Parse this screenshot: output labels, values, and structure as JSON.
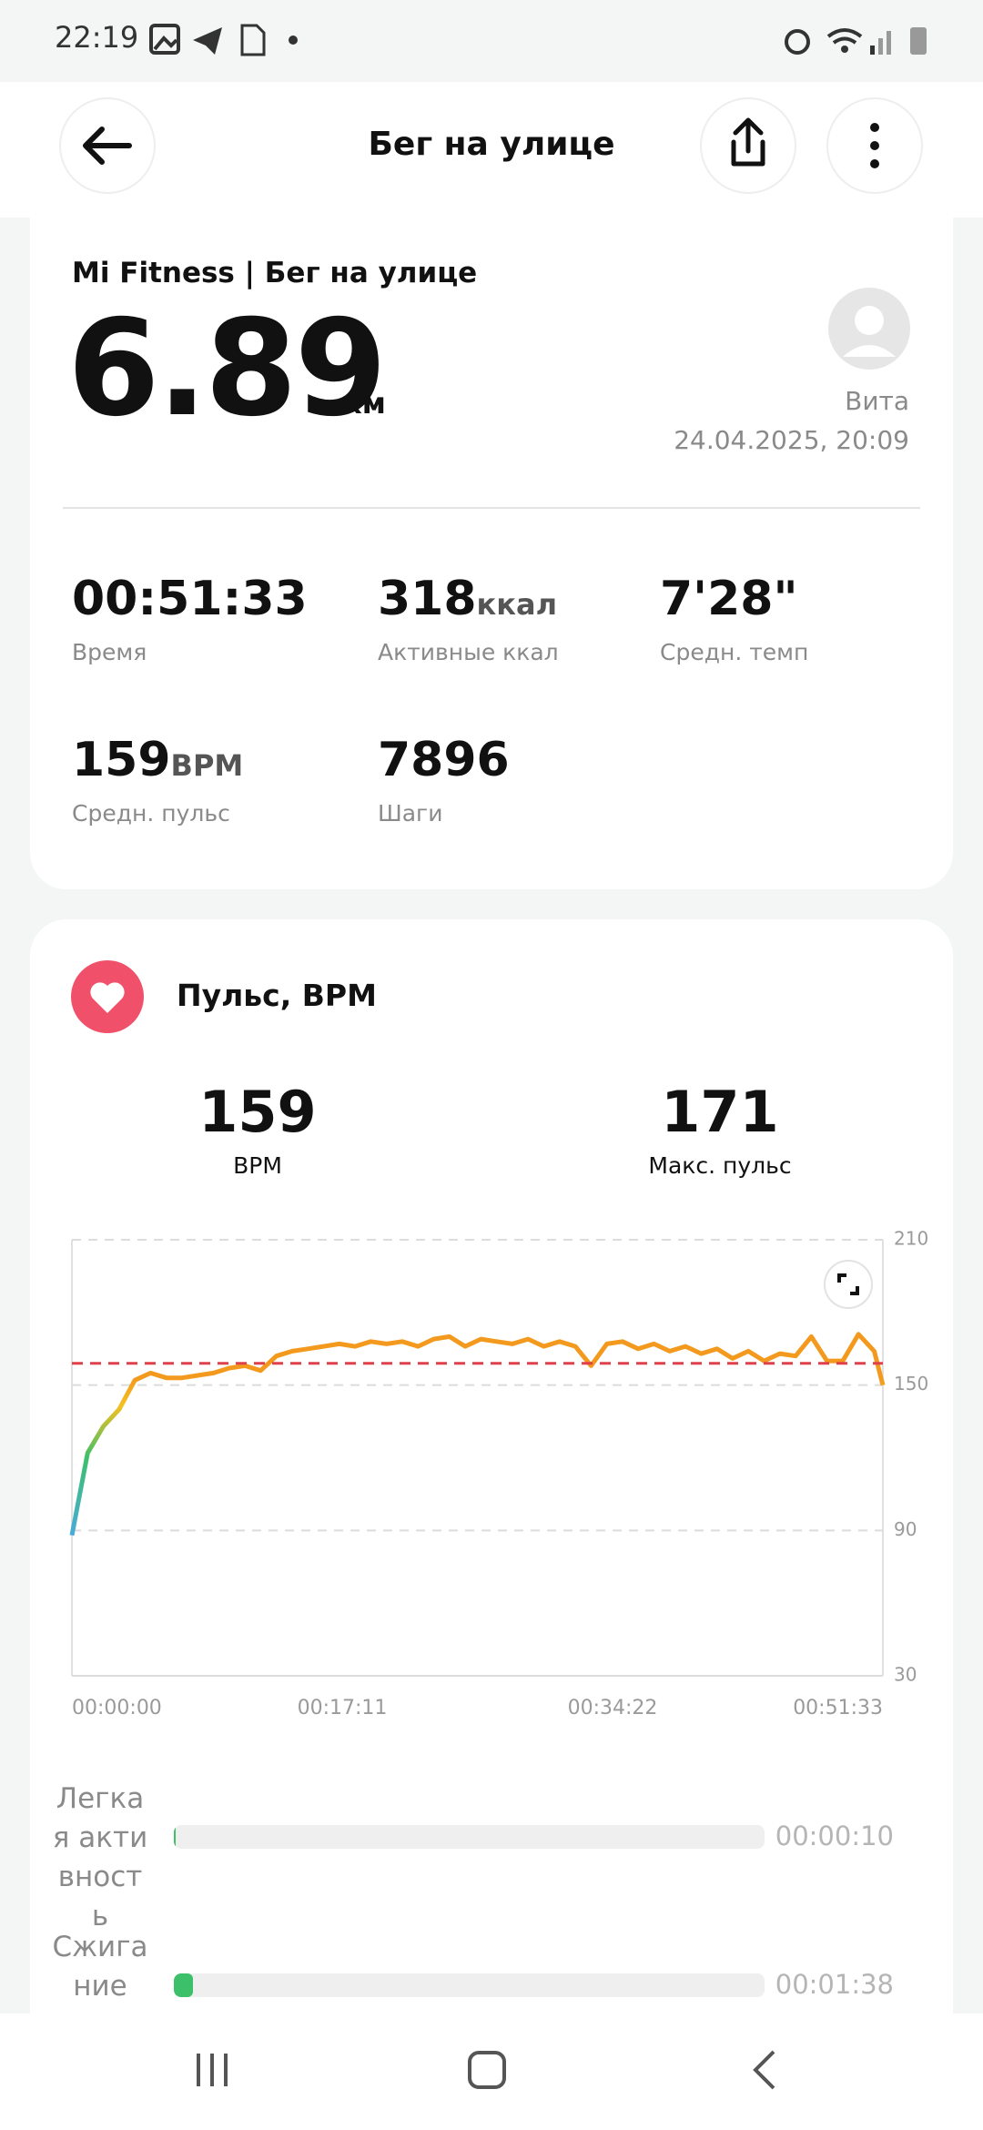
{
  "status_bar": {
    "time": "22:19"
  },
  "header": {
    "title": "Бег на улице"
  },
  "summary": {
    "source": "Mi Fitness | Бег на улице",
    "distance": 6.89,
    "unit": "км",
    "user": "Вита",
    "date": "24.04.2025, 20:09"
  },
  "stats": [
    {
      "value": "00:51:33",
      "label": "Время"
    },
    {
      "value": 318,
      "unit": "ккал",
      "label": "Активные ккал"
    },
    {
      "value": "7'28\"",
      "label": "Средн. темп"
    },
    {
      "value": 159,
      "unit": "BPM",
      "label": "Средн. пульс"
    },
    {
      "value": 7896,
      "label": "Шаги"
    }
  ],
  "heart": {
    "title": "Пульс, BPM",
    "avg_value": 159,
    "avg_label": "BPM",
    "max_value": 171,
    "max_label": "Макс. пульс"
  },
  "chart_data": {
    "type": "line",
    "x": [
      0,
      60,
      120,
      180,
      240,
      300,
      360,
      420,
      480,
      540,
      600,
      660,
      720,
      780,
      840,
      900,
      960,
      1020,
      1080,
      1140,
      1200,
      1260,
      1320,
      1380,
      1440,
      1500,
      1560,
      1620,
      1680,
      1740,
      1800,
      1860,
      1920,
      1980,
      2040,
      2100,
      2160,
      2220,
      2280,
      2340,
      2400,
      2460,
      2520,
      2580,
      2640,
      2700,
      2760,
      2820,
      2880,
      2940,
      3000,
      3060,
      3093
    ],
    "series": [
      {
        "color": "#f39a1e",
        "values": [
          88,
          122,
          133,
          140,
          152,
          155,
          153,
          153,
          154,
          155,
          157,
          158,
          156,
          162,
          164,
          165,
          166,
          167,
          166,
          168,
          167,
          168,
          166,
          169,
          170,
          166,
          169,
          168,
          167,
          169,
          166,
          168,
          166,
          158,
          167,
          168,
          165,
          167,
          164,
          166,
          163,
          165,
          161,
          164,
          160,
          163,
          162,
          170,
          160,
          160,
          171,
          164,
          150
        ]
      }
    ],
    "xlim": [
      0,
      3093
    ],
    "xticks": [
      {
        "value": 0,
        "label": "00:00:00"
      },
      {
        "value": 1031,
        "label": "00:17:11"
      },
      {
        "value": 2062,
        "label": "00:34:22"
      },
      {
        "value": 3093,
        "label": "00:51:33"
      }
    ],
    "ylim": [
      30,
      210
    ],
    "yticks": [
      30,
      90,
      150,
      210
    ],
    "grid": true
  },
  "zones": [
    {
      "label": "Легкая активность",
      "time": "00:00:10"
    },
    {
      "label": "Сжигание",
      "time": "00:01:38"
    }
  ]
}
